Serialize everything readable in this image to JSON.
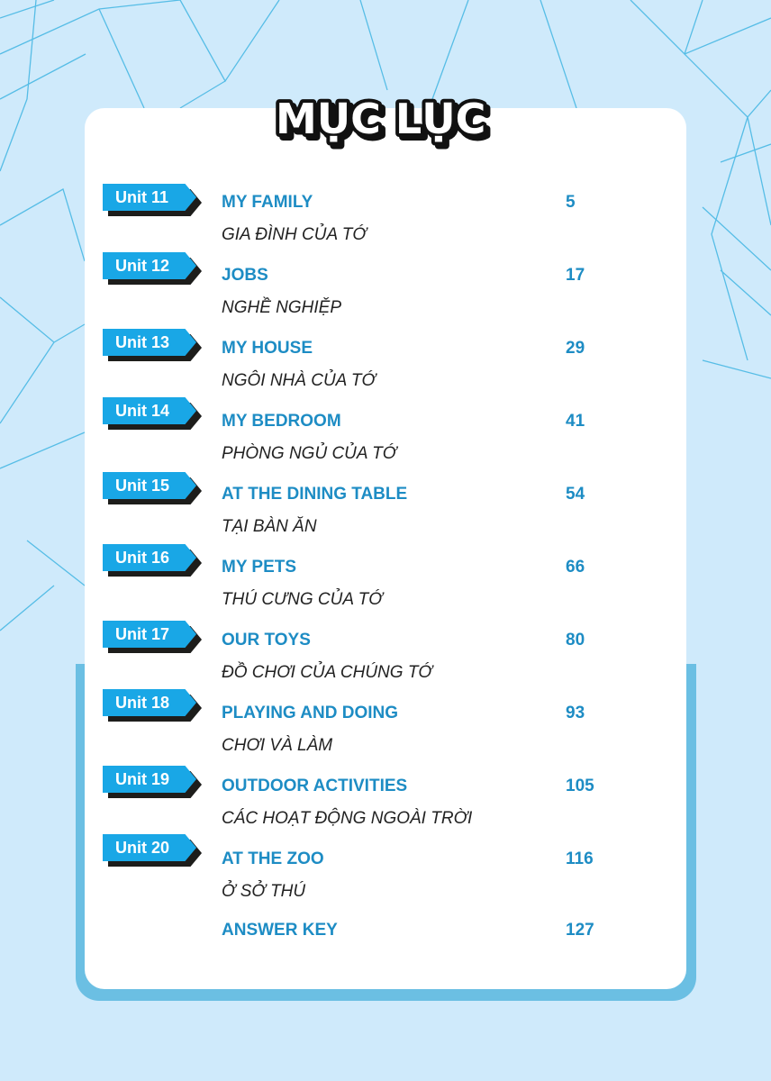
{
  "title": "MỤC LỤC",
  "entries": [
    {
      "unit": "Unit 11",
      "title": "MY FAMILY",
      "subtitle": "GIA ĐÌNH CỦA TỚ",
      "page": "5"
    },
    {
      "unit": "Unit 12",
      "title": "JOBS",
      "subtitle": "NGHỀ NGHIỆP",
      "page": "17"
    },
    {
      "unit": "Unit 13",
      "title": "MY HOUSE",
      "subtitle": "NGÔI NHÀ CỦA TỚ",
      "page": "29"
    },
    {
      "unit": "Unit 14",
      "title": "MY BEDROOM",
      "subtitle": "PHÒNG NGỦ CỦA TỚ",
      "page": "41"
    },
    {
      "unit": "Unit 15",
      "title": "AT THE DINING TABLE",
      "subtitle": "TẠI BÀN ĂN",
      "page": "54"
    },
    {
      "unit": "Unit 16",
      "title": "MY PETS",
      "subtitle": "THÚ CƯNG CỦA TỚ",
      "page": "66"
    },
    {
      "unit": "Unit 17",
      "title": "OUR TOYS",
      "subtitle": "ĐỒ CHƠI CỦA CHÚNG TỚ",
      "page": "80"
    },
    {
      "unit": "Unit 18",
      "title": "PLAYING AND DOING",
      "subtitle": "CHƠI VÀ LÀM",
      "page": "93"
    },
    {
      "unit": "Unit 19",
      "title": "OUTDOOR ACTIVITIES",
      "subtitle": "CÁC HOẠT ĐỘNG NGOÀI TRỜI",
      "page": "105"
    },
    {
      "unit": "Unit 20",
      "title": "AT THE ZOO",
      "subtitle": "Ở SỞ THÚ",
      "page": "116"
    }
  ],
  "answer_key": {
    "title": "ANSWER KEY",
    "page": "127"
  },
  "colors": {
    "background": "#cfeafb",
    "badge": "#19a7e6",
    "heading": "#1d8cc4",
    "frame": "#6bbfe3"
  }
}
